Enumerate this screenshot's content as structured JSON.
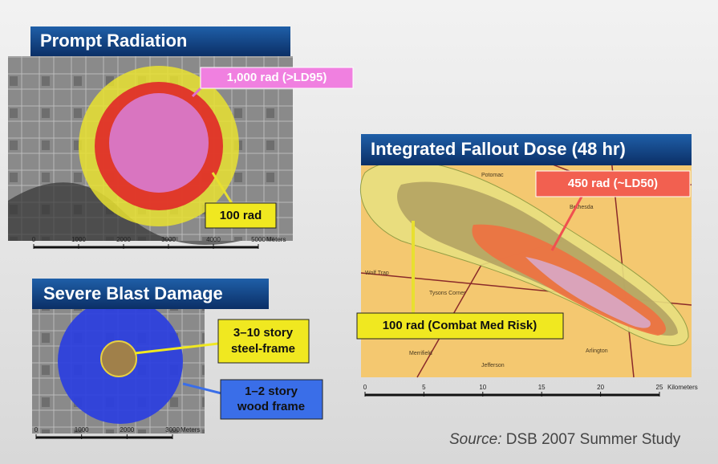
{
  "panels": [
    {
      "title": "Prompt Radiation",
      "labels": [
        "1,000 rad (>LD95)",
        "100 rad"
      ],
      "scale": {
        "ticks": [
          0,
          1000,
          2000,
          3000,
          4000,
          5000
        ],
        "unit": "Meters"
      }
    },
    {
      "title": "Severe Blast Damage",
      "labels": [
        [
          "3–10 story",
          "steel-frame"
        ],
        [
          "1–2 story",
          "wood frame"
        ]
      ],
      "scale": {
        "ticks": [
          0,
          1000,
          2000,
          3000
        ],
        "unit": "Meters"
      }
    },
    {
      "title": "Integrated Fallout Dose (48 hr)",
      "labels": [
        "450 rad (~LD50)",
        "100 rad (Combat Med Risk)"
      ],
      "map_labels": [
        "Potomac",
        "Bethesda",
        "Wolf Trap",
        "Tysons Corner",
        "Merrifield",
        "Arlington",
        "Jefferson"
      ],
      "scale": {
        "ticks": [
          0,
          5,
          10,
          15,
          20,
          25
        ],
        "unit": "Kilometers"
      }
    }
  ],
  "source": {
    "prefix": "Source:",
    "text": "DSB 2007 Summer Study"
  }
}
